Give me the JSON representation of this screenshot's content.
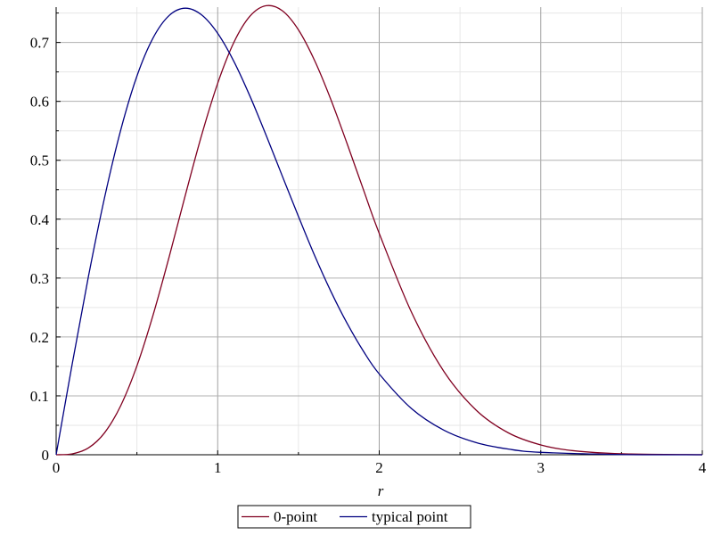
{
  "chart_data": {
    "type": "line",
    "title": "",
    "xlabel": "r",
    "ylabel": "",
    "xlim": [
      0,
      4
    ],
    "ylim": [
      0,
      0.76
    ],
    "grid": true,
    "legend_placement": "bottom",
    "x_ticks": [
      "0",
      "1",
      "2",
      "3",
      "4"
    ],
    "y_ticks": [
      "0",
      "0.1",
      "0.2",
      "0.3",
      "0.4",
      "0.5",
      "0.6",
      "0.7"
    ],
    "x_tick_values": [
      0,
      1,
      2,
      3,
      4
    ],
    "y_tick_values": [
      0,
      0.1,
      0.2,
      0.3,
      0.4,
      0.5,
      0.6,
      0.7
    ],
    "series": [
      {
        "name": "0-point",
        "color": "#800020",
        "x": [
          0,
          0.1,
          0.2,
          0.3,
          0.4,
          0.5,
          0.6,
          0.7,
          0.8,
          0.9,
          1.0,
          1.1,
          1.2,
          1.3,
          1.4,
          1.5,
          1.6,
          1.7,
          1.8,
          1.9,
          2.0,
          2.2,
          2.4,
          2.6,
          2.8,
          3.0,
          3.2,
          3.5,
          4.0
        ],
        "y": [
          0,
          0.0015,
          0.0116,
          0.0374,
          0.0835,
          0.1509,
          0.2372,
          0.3364,
          0.441,
          0.5421,
          0.6307,
          0.7,
          0.7447,
          0.7624,
          0.7539,
          0.7214,
          0.6693,
          0.6035,
          0.5291,
          0.4518,
          0.3759,
          0.2418,
          0.1416,
          0.0757,
          0.0371,
          0.0167,
          0.0069,
          0.0016,
          0.0001
        ]
      },
      {
        "name": "typical point",
        "color": "#000080",
        "x": [
          0,
          0.1,
          0.2,
          0.3,
          0.4,
          0.5,
          0.6,
          0.7,
          0.8,
          0.9,
          1.0,
          1.1,
          1.2,
          1.3,
          1.4,
          1.5,
          1.6,
          1.7,
          1.8,
          1.9,
          2.0,
          2.2,
          2.4,
          2.6,
          2.8,
          3.0,
          3.5,
          4.0
        ],
        "y": [
          0,
          0.155,
          0.3029,
          0.4369,
          0.5516,
          0.6429,
          0.7077,
          0.7459,
          0.7582,
          0.7469,
          0.7155,
          0.668,
          0.6087,
          0.5423,
          0.4732,
          0.4046,
          0.3383,
          0.2777,
          0.2237,
          0.1768,
          0.1372,
          0.0783,
          0.0417,
          0.0207,
          0.0096,
          0.0041,
          0.0004,
          0.0
        ]
      }
    ]
  }
}
